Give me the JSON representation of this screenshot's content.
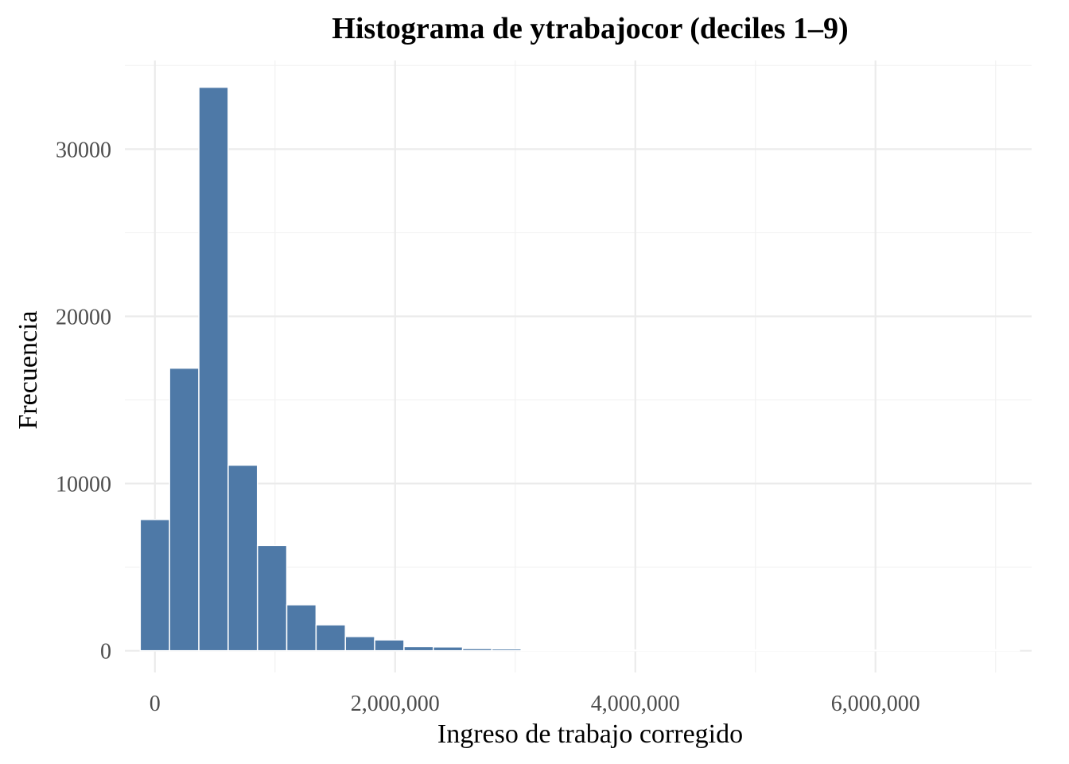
{
  "chart_data": {
    "type": "bar",
    "title": "Histograma de ytrabajocor (deciles 1–9)",
    "xlabel": "Ingreso de trabajo corregido",
    "ylabel": "Frecuencia",
    "bar_color": "#4e79a7",
    "xlim": [
      -250000,
      7300000
    ],
    "ylim": [
      -1300,
      35300
    ],
    "x_ticks": [
      {
        "value": 0,
        "label": "0"
      },
      {
        "value": 2000000,
        "label": "2,000,000"
      },
      {
        "value": 4000000,
        "label": "4,000,000"
      },
      {
        "value": 6000000,
        "label": "6,000,000"
      }
    ],
    "y_ticks": [
      {
        "value": 0,
        "label": "0"
      },
      {
        "value": 10000,
        "label": "10000"
      },
      {
        "value": 20000,
        "label": "20000"
      },
      {
        "value": 30000,
        "label": "30000"
      }
    ],
    "bin_width": 244000,
    "bins": [
      {
        "x0": -122000,
        "x1": 122000,
        "count": 7850
      },
      {
        "x0": 122000,
        "x1": 366000,
        "count": 16900
      },
      {
        "x0": 366000,
        "x1": 610000,
        "count": 33700
      },
      {
        "x0": 610000,
        "x1": 854000,
        "count": 11100
      },
      {
        "x0": 854000,
        "x1": 1098000,
        "count": 6300
      },
      {
        "x0": 1098000,
        "x1": 1342000,
        "count": 2750
      },
      {
        "x0": 1342000,
        "x1": 1586000,
        "count": 1550
      },
      {
        "x0": 1586000,
        "x1": 1830000,
        "count": 850
      },
      {
        "x0": 1830000,
        "x1": 2074000,
        "count": 650
      },
      {
        "x0": 2074000,
        "x1": 2318000,
        "count": 250
      },
      {
        "x0": 2318000,
        "x1": 2562000,
        "count": 230
      },
      {
        "x0": 2562000,
        "x1": 2806000,
        "count": 130
      },
      {
        "x0": 2806000,
        "x1": 3050000,
        "count": 110
      },
      {
        "x0": 3050000,
        "x1": 3294000,
        "count": 40
      },
      {
        "x0": 3294000,
        "x1": 3538000,
        "count": 30
      },
      {
        "x0": 3538000,
        "x1": 3782000,
        "count": 20
      },
      {
        "x0": 3782000,
        "x1": 4026000,
        "count": 20
      },
      {
        "x0": 4026000,
        "x1": 4270000,
        "count": 10
      },
      {
        "x0": 4270000,
        "x1": 4514000,
        "count": 10
      },
      {
        "x0": 4514000,
        "x1": 4758000,
        "count": 5
      },
      {
        "x0": 4758000,
        "x1": 5002000,
        "count": 5
      },
      {
        "x0": 5002000,
        "x1": 5246000,
        "count": 5
      },
      {
        "x0": 5246000,
        "x1": 5490000,
        "count": 5
      },
      {
        "x0": 5490000,
        "x1": 5734000,
        "count": 3
      },
      {
        "x0": 5734000,
        "x1": 5978000,
        "count": 3
      },
      {
        "x0": 5978000,
        "x1": 6222000,
        "count": 3
      },
      {
        "x0": 6222000,
        "x1": 6466000,
        "count": 3
      },
      {
        "x0": 6466000,
        "x1": 6710000,
        "count": 2
      },
      {
        "x0": 6710000,
        "x1": 6954000,
        "count": 2
      },
      {
        "x0": 6954000,
        "x1": 7198000,
        "count": 60
      }
    ],
    "grid": true,
    "legend": false
  }
}
